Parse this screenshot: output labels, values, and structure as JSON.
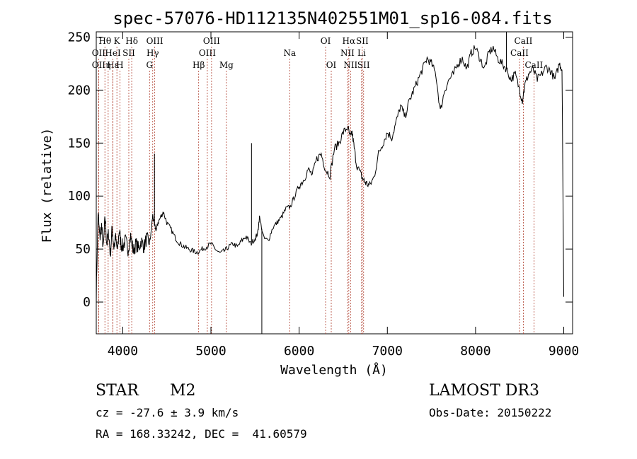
{
  "chart_data": {
    "type": "line",
    "title": "spec-57076-HD112135N402551M01_sp16-084.fits",
    "xlabel": "Wavelength (Å)",
    "ylabel": "Flux (relative)",
    "xlim": [
      3700,
      9100
    ],
    "ylim": [
      -30,
      255
    ],
    "xticks": [
      4000,
      5000,
      6000,
      7000,
      8000,
      9000
    ],
    "yticks": [
      0,
      50,
      100,
      150,
      200,
      250
    ],
    "spectrum": {
      "x": [
        3700,
        3720,
        3740,
        3760,
        3780,
        3800,
        3820,
        3840,
        3860,
        3880,
        3900,
        3920,
        3940,
        3960,
        3980,
        4000,
        4030,
        4060,
        4090,
        4120,
        4150,
        4180,
        4210,
        4240,
        4270,
        4300,
        4320,
        4340,
        4360,
        4380,
        4400,
        4430,
        4460,
        4500,
        4550,
        4600,
        4650,
        4700,
        4750,
        4800,
        4850,
        4900,
        4950,
        5000,
        5050,
        5100,
        5150,
        5200,
        5250,
        5300,
        5350,
        5400,
        5450,
        5500,
        5530,
        5550,
        5600,
        5650,
        5700,
        5750,
        5800,
        5850,
        5900,
        5950,
        6000,
        6050,
        6100,
        6150,
        6200,
        6250,
        6300,
        6350,
        6400,
        6450,
        6500,
        6550,
        6580,
        6600,
        6620,
        6650,
        6700,
        6730,
        6760,
        6800,
        6850,
        6900,
        6950,
        7000,
        7050,
        7100,
        7150,
        7200,
        7250,
        7300,
        7350,
        7400,
        7450,
        7500,
        7550,
        7600,
        7650,
        7700,
        7750,
        7800,
        7850,
        7900,
        7950,
        8000,
        8050,
        8100,
        8150,
        8200,
        8250,
        8300,
        8350,
        8400,
        8450,
        8500,
        8530,
        8560,
        8600,
        8650,
        8700,
        8750,
        8800,
        8850,
        8900,
        8950,
        8980,
        9000
      ],
      "y": [
        5,
        85,
        60,
        72,
        50,
        80,
        55,
        65,
        45,
        70,
        52,
        60,
        48,
        68,
        55,
        52,
        58,
        50,
        62,
        48,
        55,
        50,
        58,
        52,
        60,
        55,
        64,
        82,
        72,
        68,
        75,
        80,
        85,
        75,
        68,
        60,
        55,
        52,
        50,
        48,
        47,
        50,
        52,
        55,
        50,
        46,
        48,
        52,
        55,
        52,
        58,
        62,
        55,
        60,
        65,
        80,
        60,
        58,
        70,
        75,
        80,
        88,
        90,
        100,
        110,
        115,
        125,
        120,
        135,
        140,
        125,
        120,
        145,
        150,
        160,
        165,
        155,
        160,
        148,
        130,
        120,
        115,
        112,
        110,
        118,
        140,
        150,
        160,
        155,
        170,
        185,
        175,
        190,
        200,
        210,
        220,
        230,
        225,
        215,
        180,
        200,
        210,
        215,
        225,
        230,
        220,
        235,
        240,
        230,
        220,
        235,
        240,
        230,
        225,
        220,
        210,
        215,
        200,
        190,
        205,
        215,
        220,
        210,
        215,
        222,
        218,
        210,
        225,
        220,
        5
      ]
    },
    "spikes": [
      {
        "x": 5577,
        "y": -30
      },
      {
        "x": 5460,
        "y": 150
      },
      {
        "x": 4360,
        "y": 140
      },
      {
        "x": 8350,
        "y": 260
      }
    ],
    "lines": [
      {
        "label": "Hθ",
        "x": 3798,
        "row": 0
      },
      {
        "label": "OII",
        "x": 3727,
        "row": 1
      },
      {
        "label": "OII",
        "x": 3727,
        "row": 2
      },
      {
        "label": "Hε",
        "x": 3889,
        "row": 2
      },
      {
        "label": "HeI",
        "x": 3889,
        "row": 1
      },
      {
        "label": "K",
        "x": 3934,
        "row": 0
      },
      {
        "label": "η",
        "x": 3835,
        "row": 2
      },
      {
        "label": "H",
        "x": 3968,
        "row": 2
      },
      {
        "label": "SII",
        "x": 4069,
        "row": 1
      },
      {
        "label": "Hδ",
        "x": 4102,
        "row": 0
      },
      {
        "label": "OIII",
        "x": 4363,
        "row": 0
      },
      {
        "label": "Hγ",
        "x": 4340,
        "row": 1
      },
      {
        "label": "G",
        "x": 4304,
        "row": 2
      },
      {
        "label": "Hβ",
        "x": 4861,
        "row": 2
      },
      {
        "label": "OIII",
        "x": 4959,
        "row": 1
      },
      {
        "label": "OIII",
        "x": 5007,
        "row": 0
      },
      {
        "label": "Mg",
        "x": 5175,
        "row": 2
      },
      {
        "label": "Na",
        "x": 5893,
        "row": 1
      },
      {
        "label": "OI",
        "x": 6300,
        "row": 0
      },
      {
        "label": "OI",
        "x": 6364,
        "row": 2
      },
      {
        "label": "Hα",
        "x": 6563,
        "row": 0
      },
      {
        "label": "NII",
        "x": 6548,
        "row": 1
      },
      {
        "label": "NII",
        "x": 6583,
        "row": 2
      },
      {
        "label": "SII",
        "x": 6716,
        "row": 0
      },
      {
        "label": "Li",
        "x": 6708,
        "row": 1
      },
      {
        "label": "SII",
        "x": 6731,
        "row": 2
      },
      {
        "label": "CaII",
        "x": 8542,
        "row": 0
      },
      {
        "label": "CaII",
        "x": 8498,
        "row": 1
      },
      {
        "label": "CaII",
        "x": 8662,
        "row": 2
      }
    ]
  },
  "info": {
    "class": "STAR",
    "subclass": "M2",
    "survey": "LAMOST DR3",
    "cz": "cz = -27.6 ± 3.9 km/s",
    "obs_date": "Obs-Date: 20150222",
    "radec": "RA = 168.33242, DEC =  41.60579"
  }
}
